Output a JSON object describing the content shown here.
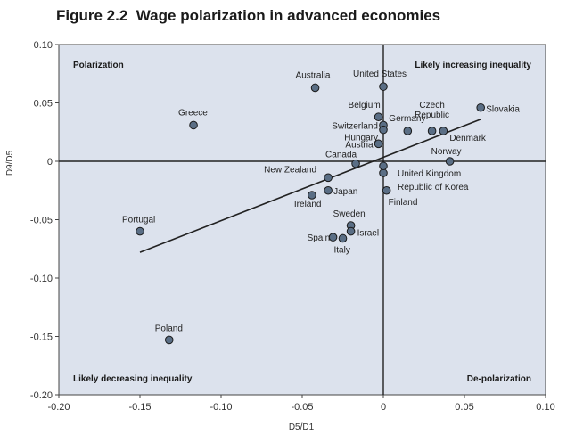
{
  "figure": {
    "number": "Figure 2.2",
    "title": "Wage polarization in advanced economies"
  },
  "chart_data": {
    "type": "scatter",
    "xlabel": "D5/D1",
    "ylabel": "D9/D5",
    "xlim": [
      -0.2,
      0.1
    ],
    "ylim": [
      -0.2,
      0.1
    ],
    "x_ticks": [
      "-0.20",
      "-0.15",
      "-0.10",
      "-0.05",
      "0",
      "0.05",
      "0.10"
    ],
    "y_ticks": [
      "0.10",
      "0.05",
      "0",
      "-0.05",
      "-0.10",
      "-0.15",
      "-0.20"
    ],
    "grid": false,
    "quadrant_labels": {
      "top_left": "Polarization",
      "top_right": "Likely increasing inequality",
      "bottom_left": "Likely decreasing inequality",
      "bottom_right": "De-polarization"
    },
    "points": [
      {
        "label": "Australia",
        "x": -0.042,
        "y": 0.063
      },
      {
        "label": "United States",
        "x": 0.0,
        "y": 0.064
      },
      {
        "label": "Greece",
        "x": -0.117,
        "y": 0.031
      },
      {
        "label": "Belgium",
        "x": -0.003,
        "y": 0.038
      },
      {
        "label": "Switzerland",
        "x": 0.0,
        "y": 0.031
      },
      {
        "label": "Hungary",
        "x": 0.0,
        "y": 0.027
      },
      {
        "label": "Austria",
        "x": -0.003,
        "y": 0.015
      },
      {
        "label": "Germany",
        "x": 0.015,
        "y": 0.026
      },
      {
        "label": "Czech Republic",
        "x": 0.03,
        "y": 0.026
      },
      {
        "label": "Slovakia",
        "x": 0.06,
        "y": 0.046
      },
      {
        "label": "Denmark",
        "x": 0.037,
        "y": 0.026
      },
      {
        "label": "Norway",
        "x": 0.041,
        "y": 0.0
      },
      {
        "label": "Canada",
        "x": -0.017,
        "y": -0.002
      },
      {
        "label": "United Kingdom",
        "x": 0.0,
        "y": -0.01
      },
      {
        "label": "New Zealand",
        "x": -0.034,
        "y": -0.014
      },
      {
        "label": "Republic of Korea",
        "x": 0.0,
        "y": -0.004
      },
      {
        "label": "Japan",
        "x": -0.034,
        "y": -0.025
      },
      {
        "label": "Ireland",
        "x": -0.044,
        "y": -0.029
      },
      {
        "label": "Finland",
        "x": 0.002,
        "y": -0.025
      },
      {
        "label": "Sweden",
        "x": -0.02,
        "y": -0.055
      },
      {
        "label": "Israel",
        "x": -0.02,
        "y": -0.06
      },
      {
        "label": "Spain",
        "x": -0.031,
        "y": -0.065
      },
      {
        "label": "Italy",
        "x": -0.025,
        "y": -0.066
      },
      {
        "label": "Portugal",
        "x": -0.15,
        "y": -0.06
      },
      {
        "label": "Poland",
        "x": -0.132,
        "y": -0.153
      }
    ],
    "trendline": {
      "x": [
        -0.15,
        0.06
      ],
      "y": [
        -0.078,
        0.036
      ]
    },
    "colors": {
      "plot_background": "#dce2ed",
      "marker_fill": "#5a6e85",
      "marker_edge": "#1a1a1a",
      "line": "#222222"
    }
  }
}
